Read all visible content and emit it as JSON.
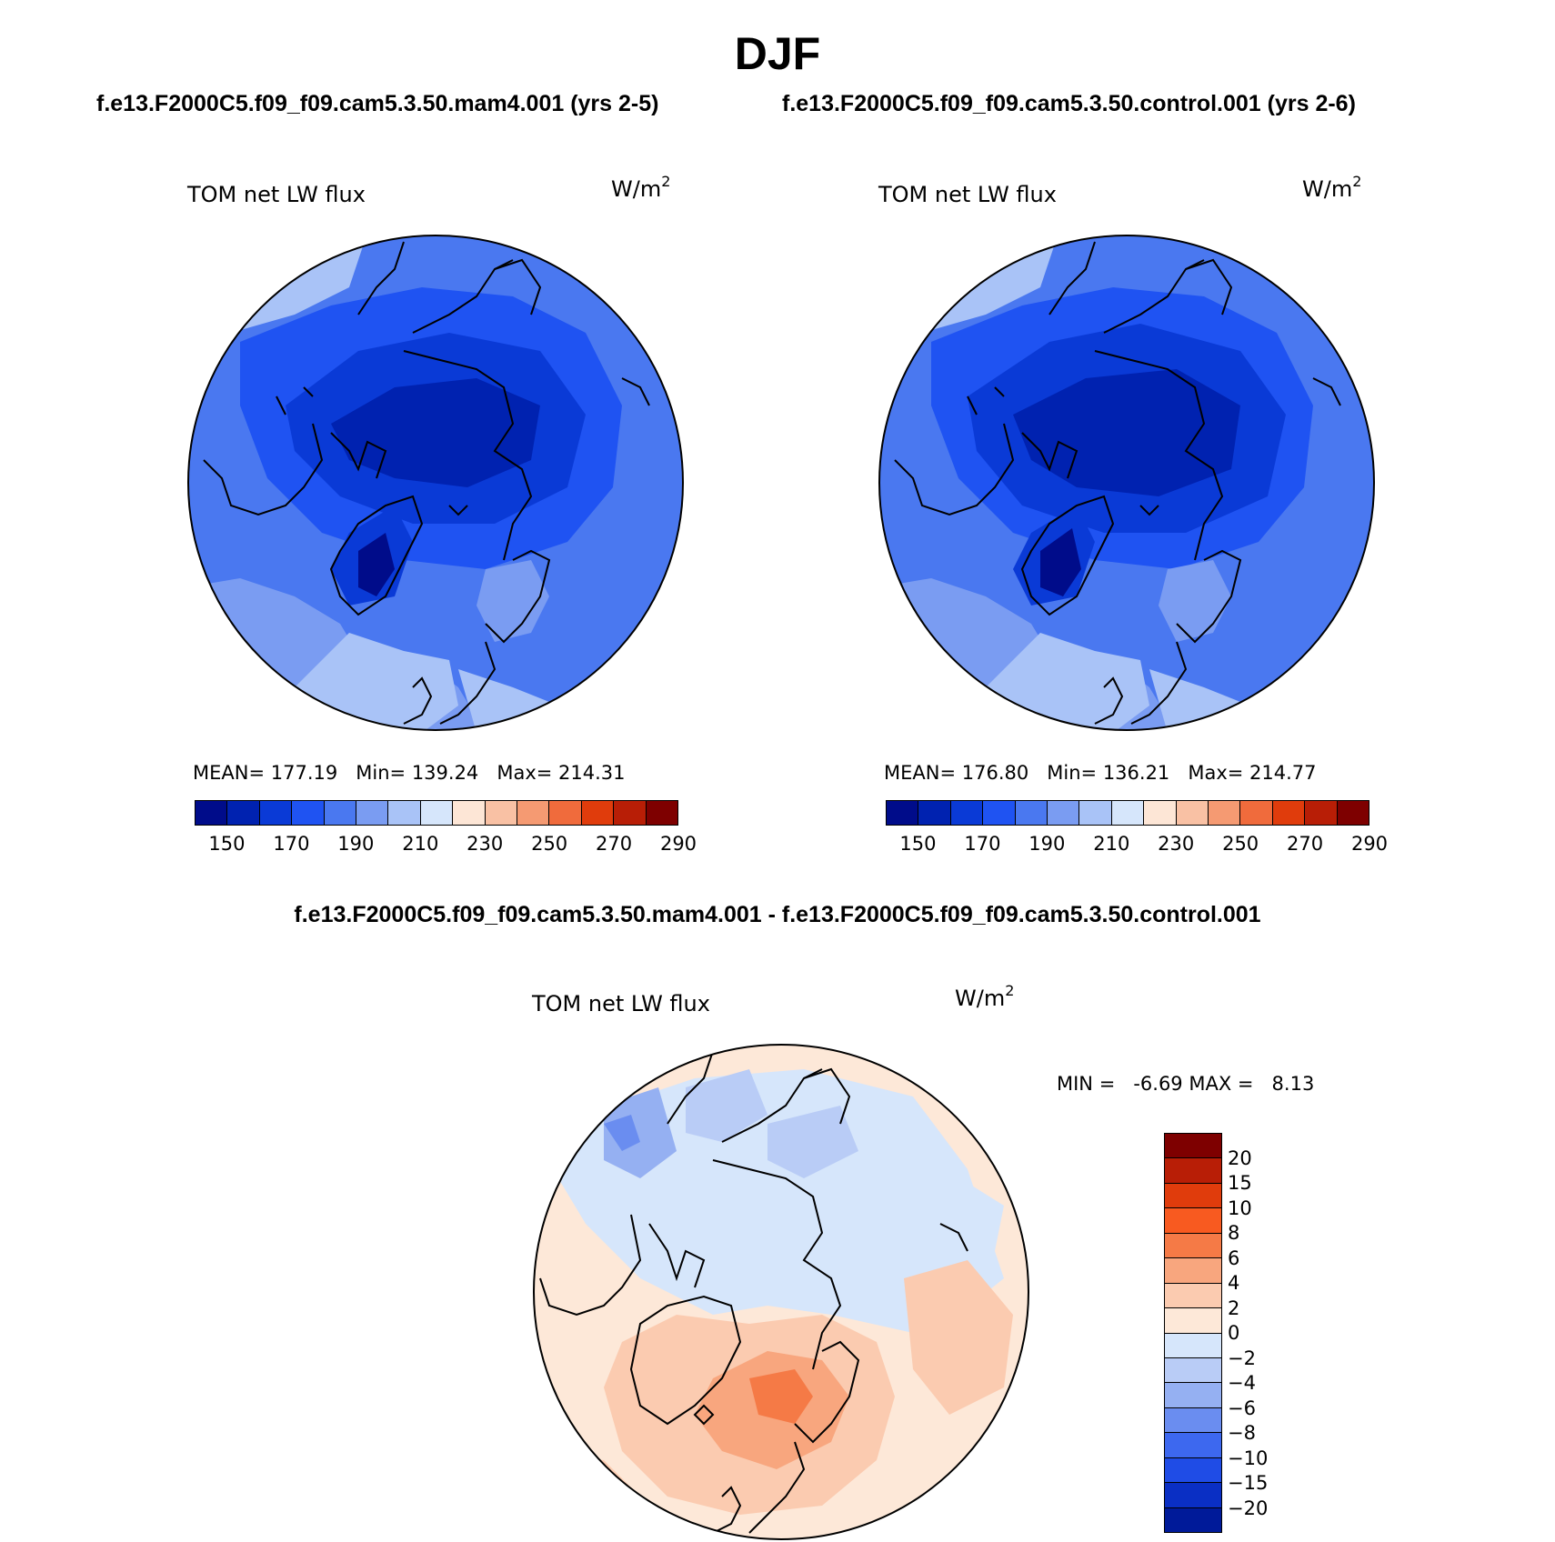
{
  "title": "DJF",
  "left_panel": {
    "header": "f.e13.F2000C5.f09_f09.cam5.3.50.mam4.001 (yrs 2-5)",
    "variable": "TOM net LW flux",
    "unit_base": "W/m",
    "unit_exp": "2",
    "stats": {
      "mean_label": "MEAN=",
      "mean": "177.19",
      "min_label": "Min=",
      "min": "139.24",
      "max_label": "Max=",
      "max": "214.31"
    }
  },
  "right_panel": {
    "header": "f.e13.F2000C5.f09_f09.cam5.3.50.control.001 (yrs 2-6)",
    "variable": "TOM net LW flux",
    "unit_base": "W/m",
    "unit_exp": "2",
    "stats": {
      "mean_label": "MEAN=",
      "mean": "176.80",
      "min_label": "Min=",
      "min": "136.21",
      "max_label": "Max=",
      "max": "214.77"
    }
  },
  "diff_panel": {
    "header": "f.e13.F2000C5.f09_f09.cam5.3.50.mam4.001 - f.e13.F2000C5.f09_f09.cam5.3.50.control.001",
    "variable": "TOM net LW flux",
    "unit_base": "W/m",
    "unit_exp": "2",
    "stats": {
      "min_label": "MIN =",
      "min": "-6.69",
      "max_label": "MAX =",
      "max": "8.13"
    }
  },
  "abs_colorbar": {
    "colors": [
      "#000c8a",
      "#0022b0",
      "#0a3ad6",
      "#1f53f2",
      "#4a78f0",
      "#7a9cf2",
      "#a9c3f7",
      "#d6e6fb",
      "#fde6d6",
      "#f9c1a4",
      "#f59a72",
      "#f06b3c",
      "#e03c0c",
      "#b81e06",
      "#7e0000"
    ],
    "ticks": [
      "150",
      "170",
      "190",
      "210",
      "230",
      "250",
      "270",
      "290"
    ]
  },
  "diff_colorbar": {
    "colors": [
      "#7e0000",
      "#b81e06",
      "#e03c0c",
      "#f85a20",
      "#f57a46",
      "#f8a67e",
      "#fbcbb0",
      "#fde8d8",
      "#d6e6fb",
      "#b9ccf6",
      "#95b0f2",
      "#6a8df0",
      "#3d68ef",
      "#1f4ce6",
      "#0a2fc4",
      "#001a99"
    ],
    "ticks": [
      "20",
      "15",
      "10",
      "8",
      "6",
      "4",
      "2",
      "0",
      "−2",
      "−4",
      "−6",
      "−8",
      "−10",
      "−15",
      "−20"
    ]
  }
}
